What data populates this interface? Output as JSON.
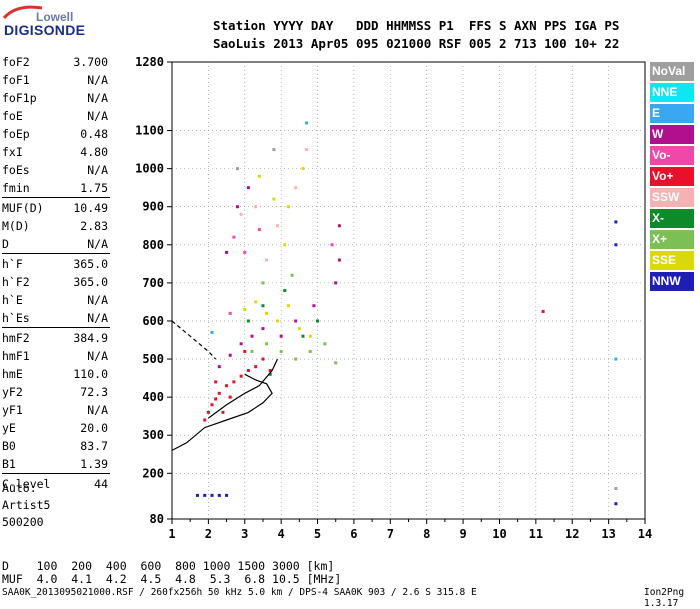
{
  "logo": {
    "line1": "Lowell",
    "line2": "DIGISONDE"
  },
  "header": {
    "row1": "Station YYYY DAY   DDD HHMMSS P1  FFS S AXN PPS IGA PS",
    "row2": "SaoLuis 2013 Apr05 095 021000 RSF 005 2 713 100 10+ 22"
  },
  "params": [
    {
      "k": "foF2",
      "v": "3.700"
    },
    {
      "k": "foF1",
      "v": "N/A"
    },
    {
      "k": "foF1p",
      "v": "N/A"
    },
    {
      "k": "foE",
      "v": "N/A"
    },
    {
      "k": "foEp",
      "v": "0.48"
    },
    {
      "k": "fxI",
      "v": "4.80"
    },
    {
      "k": "foEs",
      "v": "N/A"
    },
    {
      "k": "fmin",
      "v": "1.75"
    },
    {
      "k": "MUF(D)",
      "v": "10.49"
    },
    {
      "k": "M(D)",
      "v": "2.83"
    },
    {
      "k": "D",
      "v": "N/A"
    },
    {
      "k": "h`F",
      "v": "365.0"
    },
    {
      "k": "h`F2",
      "v": "365.0"
    },
    {
      "k": "h`E",
      "v": "N/A"
    },
    {
      "k": "h`Es",
      "v": "N/A"
    },
    {
      "k": "hmF2",
      "v": "384.9"
    },
    {
      "k": "hmF1",
      "v": "N/A"
    },
    {
      "k": "hmE",
      "v": "110.0"
    },
    {
      "k": "yF2",
      "v": "72.3"
    },
    {
      "k": "yF1",
      "v": "N/A"
    },
    {
      "k": "yE",
      "v": "20.0"
    },
    {
      "k": "B0",
      "v": "83.7"
    },
    {
      "k": "B1",
      "v": "1.39"
    },
    {
      "k": "C-level",
      "v": "44"
    }
  ],
  "auto": {
    "l1": "Auto:",
    "l2": "Artist5",
    "l3": "500200"
  },
  "legend": [
    {
      "label": "NoVal",
      "color": "#9e9e9e"
    },
    {
      "label": "NNE",
      "color": "#10e6ef"
    },
    {
      "label": "E",
      "color": "#3aa8f0"
    },
    {
      "label": "W",
      "color": "#b0108e"
    },
    {
      "label": "Vo-",
      "color": "#ef48a8"
    },
    {
      "label": "Vo+",
      "color": "#e8102a"
    },
    {
      "label": "SSW",
      "color": "#f4b2b2"
    },
    {
      "label": "X-",
      "color": "#0f8a2a"
    },
    {
      "label": "X+",
      "color": "#7cbf55"
    },
    {
      "label": "SSE",
      "color": "#d8d80a"
    },
    {
      "label": "NNW",
      "color": "#1e1eb4"
    }
  ],
  "footer": {
    "d_row": "D    100  200  400  600  800 1000 1500 3000 [km]",
    "muf_row": "MUF  4.0  4.1  4.2  4.5  4.8  5.3  6.8 10.5 [MHz]",
    "file_line": "SAA0K_2013095021000.RSF / 260fx256h 50 kHz 5.0 km / DPS-4 SAA0K 903 / 2.6 S 315.8 E",
    "version": "Ion2Png 1.3.17"
  },
  "chart_data": {
    "type": "scatter",
    "title": "",
    "xlabel": "",
    "ylabel": "",
    "xlim": [
      1,
      14
    ],
    "ylim": [
      80,
      1280
    ],
    "xticks": [
      "1",
      "2",
      "3",
      "4",
      "5",
      "6",
      "7",
      "8",
      "9",
      "10",
      "11",
      "12",
      "13",
      "14"
    ],
    "yticks": [
      "80",
      "200",
      "300",
      "400",
      "500",
      "600",
      "700",
      "800",
      "900",
      "1000",
      "1100",
      "1280"
    ],
    "grid": true,
    "legend_position": "right",
    "series": [
      {
        "name": "Vo+",
        "color": "#e8102a",
        "points": [
          [
            1.9,
            340
          ],
          [
            2.0,
            360
          ],
          [
            2.1,
            380
          ],
          [
            2.2,
            395
          ],
          [
            2.3,
            410
          ],
          [
            2.5,
            430
          ],
          [
            2.7,
            440
          ],
          [
            2.9,
            455
          ],
          [
            3.1,
            470
          ],
          [
            3.3,
            480
          ],
          [
            3.5,
            500
          ],
          [
            2.4,
            360
          ],
          [
            2.6,
            400
          ],
          [
            2.2,
            440
          ],
          [
            3.0,
            520
          ],
          [
            3.7,
            470
          ],
          [
            11.2,
            625
          ]
        ]
      },
      {
        "name": "W",
        "color": "#b0108e",
        "points": [
          [
            2.3,
            480
          ],
          [
            2.6,
            510
          ],
          [
            2.9,
            540
          ],
          [
            3.2,
            560
          ],
          [
            3.5,
            580
          ],
          [
            4.0,
            560
          ],
          [
            4.4,
            600
          ],
          [
            5.6,
            850
          ],
          [
            5.6,
            760
          ],
          [
            5.5,
            700
          ],
          [
            4.9,
            640
          ],
          [
            2.8,
            900
          ],
          [
            3.1,
            950
          ],
          [
            2.5,
            780
          ]
        ]
      },
      {
        "name": "SSE",
        "color": "#d8d80a",
        "points": [
          [
            3.0,
            630
          ],
          [
            3.3,
            650
          ],
          [
            3.6,
            620
          ],
          [
            3.9,
            600
          ],
          [
            4.2,
            640
          ],
          [
            4.5,
            580
          ],
          [
            4.8,
            560
          ],
          [
            3.4,
            980
          ],
          [
            3.8,
            920
          ],
          [
            4.2,
            900
          ],
          [
            4.6,
            1000
          ],
          [
            4.1,
            800
          ]
        ]
      },
      {
        "name": "X+",
        "color": "#7cbf55",
        "points": [
          [
            3.2,
            520
          ],
          [
            3.6,
            540
          ],
          [
            4.0,
            520
          ],
          [
            4.4,
            500
          ],
          [
            4.8,
            520
          ],
          [
            5.2,
            540
          ],
          [
            5.5,
            490
          ],
          [
            3.5,
            700
          ],
          [
            4.3,
            720
          ]
        ]
      },
      {
        "name": "X-",
        "color": "#0f8a2a",
        "points": [
          [
            3.1,
            600
          ],
          [
            3.5,
            640
          ],
          [
            4.1,
            680
          ],
          [
            4.6,
            560
          ],
          [
            5.0,
            600
          ],
          [
            3.7,
            460
          ]
        ]
      },
      {
        "name": "SSW",
        "color": "#f4b2b2",
        "points": [
          [
            2.9,
            880
          ],
          [
            3.3,
            900
          ],
          [
            3.9,
            850
          ],
          [
            4.4,
            950
          ],
          [
            4.7,
            1050
          ],
          [
            3.6,
            760
          ]
        ]
      },
      {
        "name": "Vo-",
        "color": "#ef48a8",
        "points": [
          [
            2.7,
            820
          ],
          [
            3.0,
            780
          ],
          [
            3.4,
            840
          ],
          [
            2.6,
            620
          ],
          [
            5.4,
            800
          ]
        ]
      },
      {
        "name": "NNW",
        "color": "#1e1eb4",
        "points": [
          [
            1.7,
            142
          ],
          [
            1.9,
            142
          ],
          [
            2.1,
            142
          ],
          [
            2.3,
            142
          ],
          [
            2.5,
            142
          ],
          [
            13.2,
            860
          ],
          [
            13.2,
            800
          ],
          [
            13.2,
            120
          ]
        ]
      },
      {
        "name": "E",
        "color": "#3aa8f0",
        "points": [
          [
            2.1,
            570
          ],
          [
            4.7,
            1120
          ],
          [
            13.2,
            500
          ]
        ]
      },
      {
        "name": "NoVal",
        "color": "#9e9e9e",
        "points": [
          [
            2.8,
            1000
          ],
          [
            3.8,
            1050
          ],
          [
            13.2,
            160
          ]
        ]
      }
    ],
    "lines": [
      {
        "name": "trace-lower",
        "points": [
          [
            1.0,
            260
          ],
          [
            1.4,
            280
          ],
          [
            1.9,
            320
          ],
          [
            2.5,
            340
          ],
          [
            3.1,
            360
          ],
          [
            3.5,
            385
          ],
          [
            3.75,
            410
          ],
          [
            3.6,
            435
          ],
          [
            3.3,
            445
          ],
          [
            3.0,
            460
          ]
        ]
      },
      {
        "name": "trace-upper",
        "points": [
          [
            2.0,
            345
          ],
          [
            2.5,
            380
          ],
          [
            3.0,
            410
          ],
          [
            3.4,
            430
          ],
          [
            3.75,
            470
          ],
          [
            3.9,
            500
          ]
        ]
      },
      {
        "name": "trace-dashed",
        "dashed": true,
        "points": [
          [
            1.0,
            600
          ],
          [
            1.5,
            560
          ],
          [
            2.0,
            520
          ],
          [
            2.2,
            500
          ]
        ]
      }
    ]
  }
}
